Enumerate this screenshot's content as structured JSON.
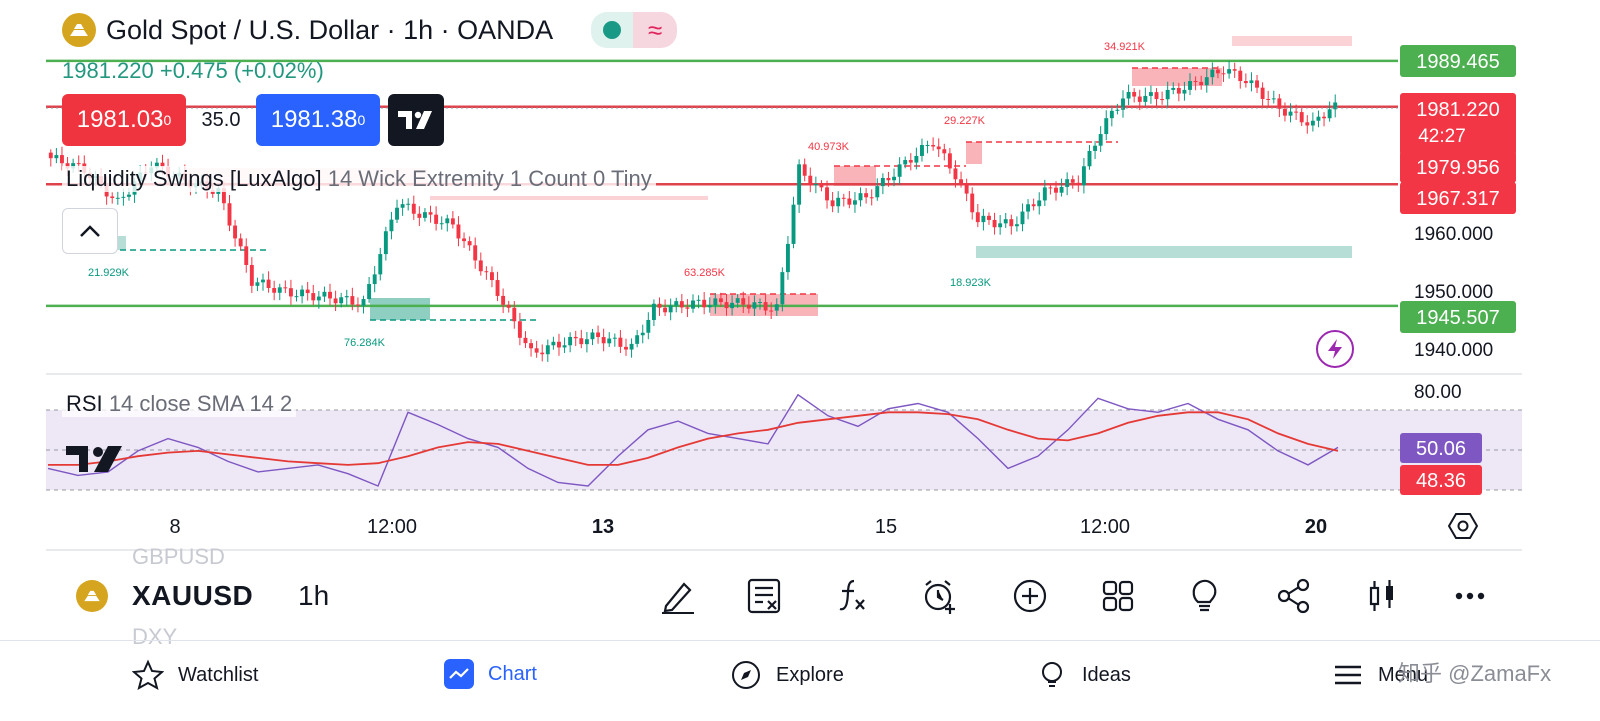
{
  "header": {
    "title": "Gold Spot / U.S. Dollar · 1h · OANDA",
    "last_line": "1981.220  +0.475 (+0.02%)"
  },
  "trade": {
    "sell": "1981.03",
    "sell_sup": "0",
    "spread": "35.0",
    "buy": "1981.38",
    "buy_sup": "0"
  },
  "indicator": {
    "name": "Liquidity Swings [LuxAlgo]",
    "params": "14 Wick Extremity 1 Count 0 Tiny"
  },
  "rsi": {
    "name": "RSI",
    "params": "14 close SMA 14 2",
    "value": "50.06",
    "sma": "48.36",
    "level_80": "80.00"
  },
  "colors": {
    "up": "#089981",
    "down": "#f23645",
    "level_green": "#4caf50",
    "level_red": "#e0424b",
    "rsi_line": "#7e57c2",
    "rsi_sma": "#e53935"
  },
  "chart_data": {
    "type": "candlestick",
    "symbol": "XAUUSD",
    "timeframe": "1h",
    "y_ticks": [
      "1960.000",
      "1950.000",
      "1940.000"
    ],
    "x_ticks": [
      "8",
      "12:00",
      "13",
      "15",
      "12:00",
      "20"
    ],
    "price_labels": [
      "1989.465",
      "1981.220",
      "42:27",
      "1979.956",
      "1967.317",
      "1945.507"
    ],
    "levels": [
      {
        "price": 1989.465,
        "color": "green"
      },
      {
        "price": 1981.22,
        "color": "red"
      },
      {
        "price": 1967.317,
        "color": "red"
      },
      {
        "price": 1945.507,
        "color": "green"
      }
    ],
    "ylim": [
      1934,
      1995
    ],
    "volume_labels": [
      "34.921K",
      "29.227K",
      "40.973K",
      "63.285K",
      "21.929K",
      "76.284K",
      "18.923K"
    ],
    "close_path": [
      {
        "i": 0,
        "c": 1972
      },
      {
        "i": 6,
        "c": 1970
      },
      {
        "i": 12,
        "c": 1964
      },
      {
        "i": 18,
        "c": 1971
      },
      {
        "i": 24,
        "c": 1968
      },
      {
        "i": 30,
        "c": 1966
      },
      {
        "i": 36,
        "c": 1950
      },
      {
        "i": 42,
        "c": 1948
      },
      {
        "i": 50,
        "c": 1947
      },
      {
        "i": 56,
        "c": 1946
      },
      {
        "i": 62,
        "c": 1964
      },
      {
        "i": 66,
        "c": 1962
      },
      {
        "i": 72,
        "c": 1960
      },
      {
        "i": 80,
        "c": 1948
      },
      {
        "i": 86,
        "c": 1937
      },
      {
        "i": 92,
        "c": 1939
      },
      {
        "i": 98,
        "c": 1940
      },
      {
        "i": 104,
        "c": 1938
      },
      {
        "i": 108,
        "c": 1945
      },
      {
        "i": 116,
        "c": 1946
      },
      {
        "i": 124,
        "c": 1946
      },
      {
        "i": 130,
        "c": 1945
      },
      {
        "i": 134,
        "c": 1970
      },
      {
        "i": 140,
        "c": 1964
      },
      {
        "i": 146,
        "c": 1965
      },
      {
        "i": 154,
        "c": 1972
      },
      {
        "i": 158,
        "c": 1975
      },
      {
        "i": 162,
        "c": 1969
      },
      {
        "i": 166,
        "c": 1961
      },
      {
        "i": 172,
        "c": 1960
      },
      {
        "i": 178,
        "c": 1966
      },
      {
        "i": 184,
        "c": 1968
      },
      {
        "i": 188,
        "c": 1977
      },
      {
        "i": 192,
        "c": 1983
      },
      {
        "i": 198,
        "c": 1983
      },
      {
        "i": 204,
        "c": 1985
      },
      {
        "i": 210,
        "c": 1988
      },
      {
        "i": 214,
        "c": 1986
      },
      {
        "i": 220,
        "c": 1981
      },
      {
        "i": 226,
        "c": 1978
      },
      {
        "i": 230,
        "c": 1982
      }
    ],
    "rsi": {
      "ylim": [
        20,
        85
      ],
      "levels": [
        70,
        50,
        30
      ],
      "series": [
        {
          "name": "RSI",
          "values": [
            38,
            34,
            36,
            48,
            55,
            50,
            42,
            36,
            38,
            40,
            35,
            28,
            70,
            63,
            55,
            50,
            38,
            30,
            28,
            45,
            60,
            65,
            58,
            55,
            52,
            80,
            68,
            62,
            72,
            75,
            70,
            55,
            38,
            45,
            60,
            78,
            72,
            70,
            75,
            66,
            60,
            48,
            40,
            50
          ]
        },
        {
          "name": "SMA",
          "values": [
            40,
            40,
            42,
            45,
            47,
            48,
            46,
            44,
            42,
            41,
            40,
            41,
            45,
            50,
            53,
            52,
            48,
            44,
            40,
            40,
            44,
            50,
            55,
            58,
            60,
            64,
            66,
            68,
            70,
            70,
            69,
            66,
            60,
            55,
            54,
            58,
            64,
            68,
            70,
            70,
            66,
            58,
            52,
            48
          ]
        }
      ]
    }
  },
  "toolbar": {
    "symbol": "XAUUSD",
    "timeframe": "1h",
    "ghost_above": "GBPUSD",
    "ghost_below": "DXY",
    "tools": [
      "draw-icon",
      "object-tree-icon",
      "indicators-icon",
      "alert-icon",
      "add-icon",
      "layouts-icon",
      "ideas-bulb-icon",
      "share-icon",
      "candle-type-icon",
      "more-icon"
    ]
  },
  "nav": {
    "watchlist": "Watchlist",
    "chart": "Chart",
    "explore": "Explore",
    "ideas": "Ideas",
    "menu": "Menu"
  },
  "watermark": "知乎 @ZamaFx"
}
